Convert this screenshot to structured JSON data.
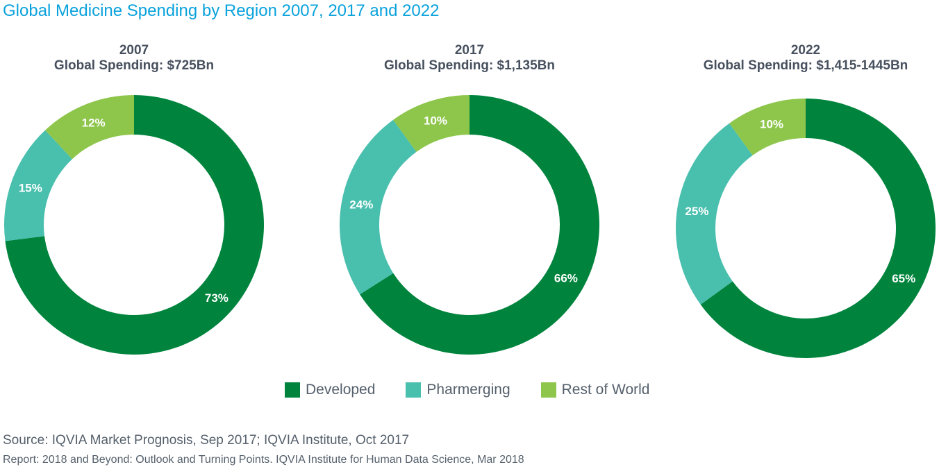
{
  "chart_data": {
    "type": "pie",
    "title": "Global Medicine Spending by Region 2007, 2017 and 2022",
    "legend": {
      "placement": "bottom",
      "entries": [
        "Developed",
        "Pharmerging",
        "Rest of World"
      ]
    },
    "colors": {
      "Developed": "#00843D",
      "Pharmerging": "#49BFAE",
      "Rest of World": "#8DC64B"
    },
    "charts": [
      {
        "year": "2007",
        "subtitle": "Global Spending: $725Bn",
        "slices": [
          {
            "name": "Developed",
            "value": 73,
            "label": "73%"
          },
          {
            "name": "Pharmerging",
            "value": 15,
            "label": "15%"
          },
          {
            "name": "Rest of World",
            "value": 12,
            "label": "12%"
          }
        ]
      },
      {
        "year": "2017",
        "subtitle": "Global Spending: $1,135Bn",
        "slices": [
          {
            "name": "Developed",
            "value": 66,
            "label": "66%"
          },
          {
            "name": "Pharmerging",
            "value": 24,
            "label": "24%"
          },
          {
            "name": "Rest of World",
            "value": 10,
            "label": "10%"
          }
        ]
      },
      {
        "year": "2022",
        "subtitle": "Global Spending: $1,415-1445Bn",
        "slices": [
          {
            "name": "Developed",
            "value": 65,
            "label": "65%"
          },
          {
            "name": "Pharmerging",
            "value": 25,
            "label": "25%"
          },
          {
            "name": "Rest of World",
            "value": 10,
            "label": "10%"
          }
        ]
      }
    ]
  },
  "footer": {
    "source": "Source: IQVIA Market Prognosis, Sep 2017; IQVIA Institute, Oct 2017",
    "report": "Report: 2018 and Beyond: Outlook and Turning Points. IQVIA Institute for Human Data Science, Mar 2018"
  }
}
